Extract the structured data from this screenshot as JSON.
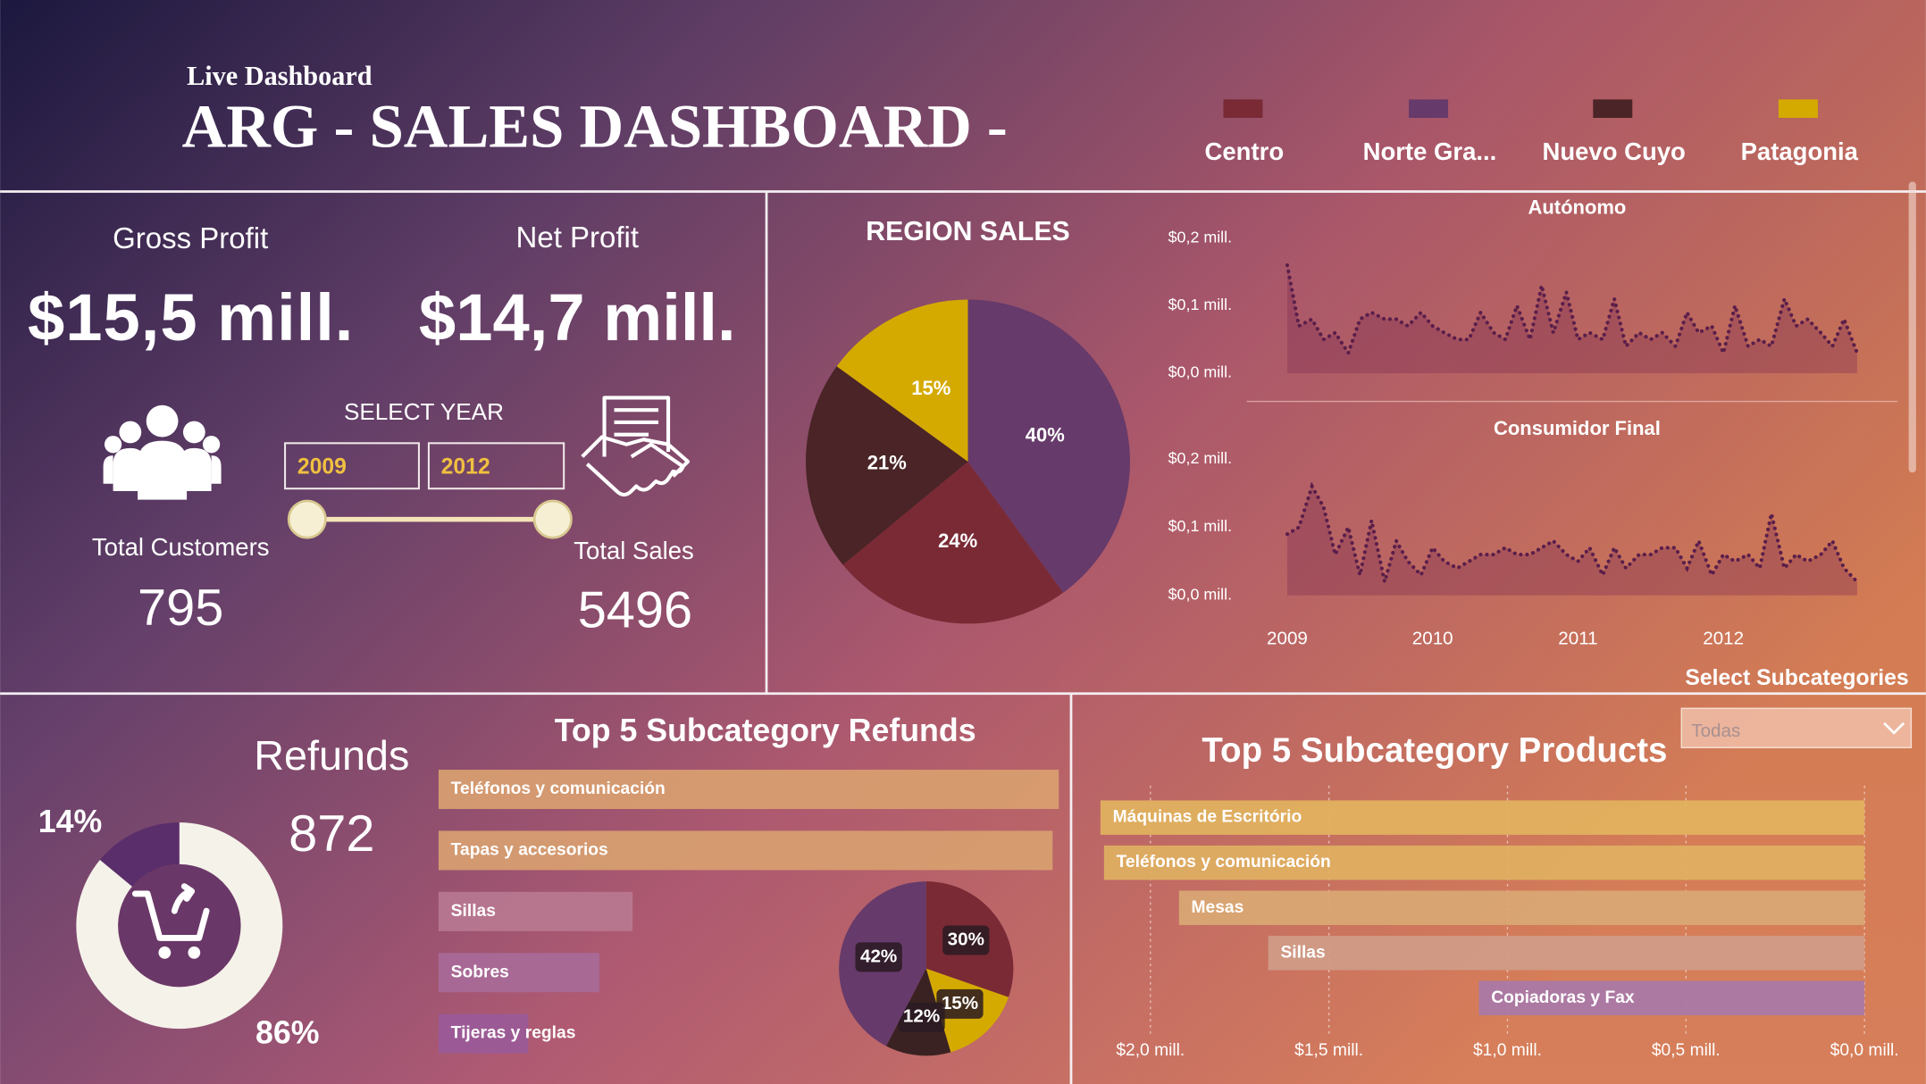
{
  "header": {
    "subtitle": "Live Dashboard",
    "title": "ARG -  SALES DASHBOARD  -"
  },
  "kpis": {
    "gross_profit": {
      "label": "Gross Profit",
      "value": "$15,5 mill."
    },
    "net_profit": {
      "label": "Net Profit",
      "value": "$14,7 mill."
    },
    "total_customers": {
      "label": "Total Customers",
      "value": 795
    },
    "total_sales": {
      "label": "Total Sales",
      "value": 5496
    },
    "refunds": {
      "label": "Refunds",
      "value": 872
    }
  },
  "year_slicer": {
    "label": "SELECT YEAR",
    "from": "2009",
    "to": "2012"
  },
  "subcategory_slicer": {
    "label": "Select Subcategories",
    "value": "Todas"
  },
  "chart_data": [
    {
      "type": "pie",
      "title": "REGION SALES",
      "categories": [
        "Norte Gra...",
        "Centro",
        "Nuevo Cuyo",
        "Patagonia"
      ],
      "values": [
        40,
        24,
        21,
        15
      ],
      "value_labels": [
        "40%",
        "24%",
        "21%",
        "15%"
      ],
      "colors": [
        "#663a6a",
        "#7a2a35",
        "#4a2426",
        "#d4aa00"
      ]
    },
    {
      "type": "line",
      "title": "Autónomo",
      "x": [
        2009,
        2009.08,
        2009.17,
        2009.25,
        2009.33,
        2009.42,
        2009.5,
        2009.58,
        2009.67,
        2009.75,
        2009.83,
        2009.92,
        2010,
        2010.08,
        2010.17,
        2010.25,
        2010.33,
        2010.42,
        2010.5,
        2010.58,
        2010.67,
        2010.75,
        2010.83,
        2010.92,
        2011,
        2011.08,
        2011.17,
        2011.25,
        2011.33,
        2011.42,
        2011.5,
        2011.58,
        2011.67,
        2011.75,
        2011.83,
        2011.92,
        2012,
        2012.08,
        2012.17,
        2012.25,
        2012.33,
        2012.42,
        2012.5,
        2012.58,
        2012.67,
        2012.75,
        2012.83,
        2012.92
      ],
      "xlim": [
        2009,
        2012.92
      ],
      "ylim": [
        0,
        0.2
      ],
      "yticks": [
        {
          "value": 0,
          "label": "$0,0 mill."
        },
        {
          "value": 0.1,
          "label": "$0,1 mill."
        },
        {
          "value": 0.2,
          "label": "$0,2 mill."
        }
      ],
      "series": [
        {
          "color": "#5a1e4a",
          "values": [
            0.16,
            0.07,
            0.08,
            0.05,
            0.06,
            0.03,
            0.08,
            0.09,
            0.08,
            0.08,
            0.07,
            0.09,
            0.07,
            0.06,
            0.05,
            0.05,
            0.09,
            0.06,
            0.05,
            0.1,
            0.05,
            0.13,
            0.06,
            0.12,
            0.05,
            0.06,
            0.05,
            0.11,
            0.04,
            0.06,
            0.05,
            0.06,
            0.04,
            0.09,
            0.06,
            0.07,
            0.03,
            0.1,
            0.04,
            0.05,
            0.04,
            0.11,
            0.07,
            0.08,
            0.06,
            0.04,
            0.08,
            0.03
          ]
        }
      ]
    },
    {
      "type": "line",
      "title": "Consumidor Final",
      "x": [
        2009,
        2009.08,
        2009.17,
        2009.25,
        2009.33,
        2009.42,
        2009.5,
        2009.58,
        2009.67,
        2009.75,
        2009.83,
        2009.92,
        2010,
        2010.08,
        2010.17,
        2010.25,
        2010.33,
        2010.42,
        2010.5,
        2010.58,
        2010.67,
        2010.75,
        2010.83,
        2010.92,
        2011,
        2011.08,
        2011.17,
        2011.25,
        2011.33,
        2011.42,
        2011.5,
        2011.58,
        2011.67,
        2011.75,
        2011.83,
        2011.92,
        2012,
        2012.08,
        2012.17,
        2012.25,
        2012.33,
        2012.42,
        2012.5,
        2012.58,
        2012.67,
        2012.75,
        2012.83,
        2012.92
      ],
      "xlim": [
        2009,
        2012.92
      ],
      "xticks": [
        2009,
        2010,
        2011,
        2012
      ],
      "ylim": [
        0,
        0.2
      ],
      "yticks": [
        {
          "value": 0,
          "label": "$0,0 mill."
        },
        {
          "value": 0.1,
          "label": "$0,1 mill."
        },
        {
          "value": 0.2,
          "label": "$0,2 mill."
        }
      ],
      "series": [
        {
          "color": "#5a1e4a",
          "values": [
            0.09,
            0.1,
            0.16,
            0.13,
            0.06,
            0.1,
            0.03,
            0.11,
            0.02,
            0.08,
            0.05,
            0.03,
            0.07,
            0.05,
            0.04,
            0.05,
            0.06,
            0.06,
            0.07,
            0.06,
            0.06,
            0.07,
            0.08,
            0.06,
            0.05,
            0.07,
            0.03,
            0.07,
            0.04,
            0.06,
            0.06,
            0.07,
            0.07,
            0.04,
            0.08,
            0.03,
            0.06,
            0.05,
            0.06,
            0.04,
            0.12,
            0.04,
            0.06,
            0.05,
            0.06,
            0.08,
            0.04,
            0.02
          ]
        }
      ]
    },
    {
      "type": "donut",
      "values": [
        14,
        86
      ],
      "value_labels": [
        "14%",
        "86%"
      ],
      "colors": [
        "#5a2e6a",
        "#f5f2ea"
      ]
    },
    {
      "type": "bar",
      "orientation": "horizontal",
      "title": "Top 5 Subcategory Refunds",
      "categories": [
        "Teléfonos y comunicación",
        "Tapas y accesorios",
        "Sillas",
        "Sobres",
        "Tijeras y reglas"
      ],
      "values": [
        505,
        500,
        158,
        131,
        73
      ],
      "xlim": [
        0,
        510
      ],
      "colors": [
        "#d9a070",
        "#d8a070",
        "#b87890",
        "#a86a98",
        "#9a5a98"
      ]
    },
    {
      "type": "pie",
      "values": [
        30,
        15,
        12,
        42
      ],
      "value_labels": [
        "30%",
        "15%",
        "12%",
        "42%"
      ],
      "colors": [
        "#7a2a35",
        "#d4aa00",
        "#3a2222",
        "#663a6a"
      ]
    },
    {
      "type": "bar",
      "orientation": "horizontal",
      "title": "Top 5 Subcategory Products",
      "categories": [
        "Máquinas de Escritório",
        "Teléfonos y comunicación",
        "Mesas",
        "Sillas",
        "Copiadoras y Fax"
      ],
      "values": [
        2.14,
        2.13,
        1.92,
        1.67,
        1.08
      ],
      "xlim": [
        2.15,
        0
      ],
      "xticks": [
        {
          "value": 2,
          "label": "$2,0 mill."
        },
        {
          "value": 1.5,
          "label": "$1,5 mill."
        },
        {
          "value": 1,
          "label": "$1,0 mill."
        },
        {
          "value": 0.5,
          "label": "$0,5 mill."
        },
        {
          "value": 0,
          "label": "$0,0 mill."
        }
      ],
      "grid": true,
      "colors": [
        "#e2b35e",
        "#e0b062",
        "#d9a874",
        "#cf9c88",
        "#a878a8"
      ]
    }
  ]
}
